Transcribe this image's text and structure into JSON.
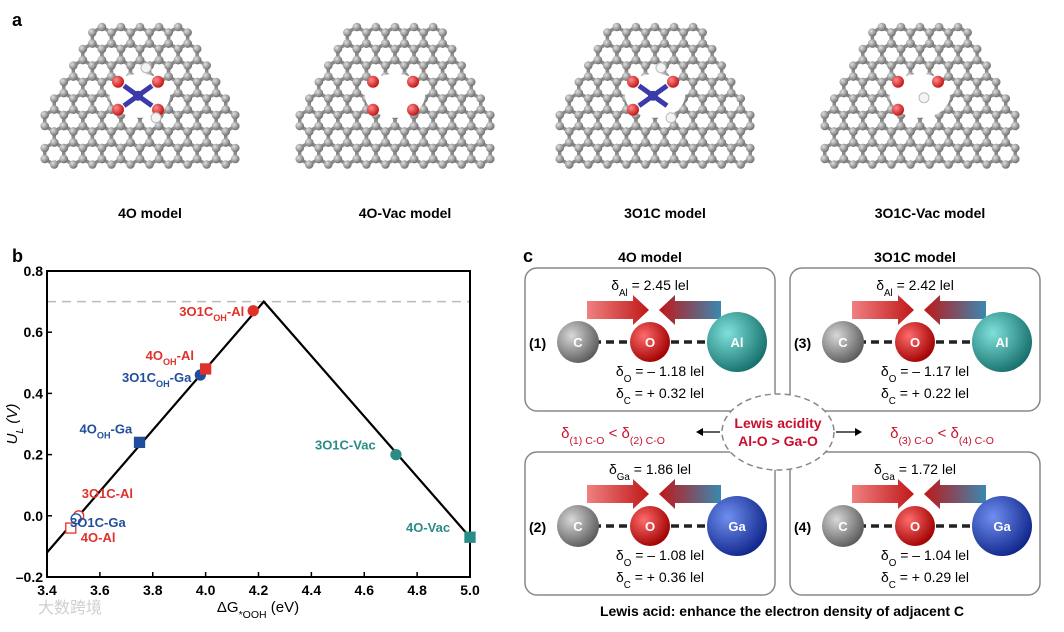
{
  "panel_a": {
    "label": "a",
    "models": [
      "4O model",
      "4O-Vac model",
      "3O1C model",
      "3O1C-Vac model"
    ]
  },
  "panel_b_label": "b",
  "chart_data": {
    "type": "scatter",
    "xlabel": {
      "prefix": "ΔG",
      "sub": "*OOH",
      "unit": " (eV)"
    },
    "ylabel": {
      "main": "U",
      "sub": "L",
      "unit": " (V)"
    },
    "xlim": [
      3.4,
      5.0
    ],
    "ylim": [
      -0.2,
      0.8
    ],
    "xticks": [
      3.4,
      3.6,
      3.8,
      {
        "value": 4,
        "label": "4.0"
      },
      4.2,
      4.4,
      4.6,
      4.8,
      {
        "value": 5,
        "label": "5.0"
      }
    ],
    "yticks": [
      {
        "value": -0.2,
        "label": "–0.2"
      },
      {
        "value": 0,
        "label": "0.0"
      },
      0.2,
      0.4,
      0.6,
      0.8
    ],
    "volcano": {
      "color": "#000000",
      "x": [
        3.4,
        4.22,
        5.0
      ],
      "y": [
        -0.12,
        0.7,
        -0.07
      ]
    },
    "limit": {
      "y": 0.7,
      "color": "#bbbbbb"
    },
    "points": [
      {
        "name": "4O-Al",
        "x": 3.49,
        "y": -0.04,
        "color": "#e0312b",
        "marker": "square",
        "filled": false
      },
      {
        "name": "3O1C-Al",
        "x": 3.52,
        "y": 0.0,
        "color": "#e0312b",
        "marker": "circle",
        "filled": false
      },
      {
        "name": "3O1C-Ga",
        "x": 3.51,
        "y": -0.01,
        "color": "#1f4e9c",
        "marker": "circle",
        "filled": false
      },
      {
        "name": {
          "base": "4O",
          "sub": "OH",
          "rest": "-Ga"
        },
        "x": 3.75,
        "y": 0.24,
        "color": "#1f4e9c",
        "marker": "square",
        "filled": true
      },
      {
        "name": {
          "base": "3O1C",
          "sub": "OH",
          "rest": "-Ga"
        },
        "x": 3.98,
        "y": 0.46,
        "color": "#1f4e9c",
        "marker": "circle",
        "filled": true
      },
      {
        "name": {
          "base": "4O",
          "sub": "OH",
          "rest": "-Al"
        },
        "x": 4.0,
        "y": 0.48,
        "color": "#e0312b",
        "marker": "square",
        "filled": true
      },
      {
        "name": {
          "base": "3O1C",
          "sub": "OH",
          "rest": "-Al"
        },
        "x": 4.18,
        "y": 0.67,
        "color": "#e0312b",
        "marker": "circle",
        "filled": true
      },
      {
        "name": "3O1C-Vac",
        "x": 4.72,
        "y": 0.2,
        "color": "#2a8c87",
        "marker": "circle",
        "filled": true
      },
      {
        "name": "4O-Vac",
        "x": 5.0,
        "y": -0.07,
        "color": "#2a8c87",
        "marker": "square",
        "filled": true
      }
    ]
  },
  "panel_c": {
    "label": "c",
    "titles": [
      "4O model",
      "3O1C model"
    ],
    "boxes": [
      {
        "index": "(1)",
        "atoms": [
          "C",
          "O",
          "Al"
        ],
        "metal": {
          "symbol": "δ",
          "sub": "Al",
          "value": " = 2.45 lel"
        },
        "o": {
          "symbol": "δ",
          "sub": "O",
          "value": " = – 1.18 lel"
        },
        "c": {
          "symbol": "δ",
          "sub": "C",
          "value": " = + 0.32 lel"
        }
      },
      {
        "index": "(3)",
        "atoms": [
          "C",
          "O",
          "Al"
        ],
        "metal": {
          "symbol": "δ",
          "sub": "Al",
          "value": " = 2.42 lel"
        },
        "o": {
          "symbol": "δ",
          "sub": "O",
          "value": " = – 1.17 lel"
        },
        "c": {
          "symbol": "δ",
          "sub": "C",
          "value": " = + 0.22 lel"
        }
      },
      {
        "index": "(2)",
        "atoms": [
          "C",
          "O",
          "Ga"
        ],
        "metal": {
          "symbol": "δ",
          "sub": "Ga",
          "value": " = 1.86 lel"
        },
        "o": {
          "symbol": "δ",
          "sub": "O",
          "value": " = – 1.08 lel"
        },
        "c": {
          "symbol": "δ",
          "sub": "C",
          "value": " = + 0.36 lel"
        }
      },
      {
        "index": "(4)",
        "atoms": [
          "C",
          "O",
          "Ga"
        ],
        "metal": {
          "symbol": "δ",
          "sub": "Ga",
          "value": " = 1.72 lel"
        },
        "o": {
          "symbol": "δ",
          "sub": "O",
          "value": " = – 1.04 lel"
        },
        "c": {
          "symbol": "δ",
          "sub": "C",
          "value": " = + 0.29 lel"
        }
      }
    ],
    "center": [
      "Lewis acidity",
      "Al-O > Ga-O"
    ],
    "left_compare": {
      "symbol": "δ",
      "sub1": "(1) C-O",
      "op": " < ",
      "symbol2": "δ",
      "sub2": "(2) C-O"
    },
    "right_compare": {
      "symbol": "δ",
      "sub1": "(3) C-O",
      "op": " < ",
      "symbol2": "δ",
      "sub2": "(4) C-O"
    },
    "footer": "Lewis acid: enhance the electron density of adjacent C"
  },
  "watermark": "大数跨境"
}
